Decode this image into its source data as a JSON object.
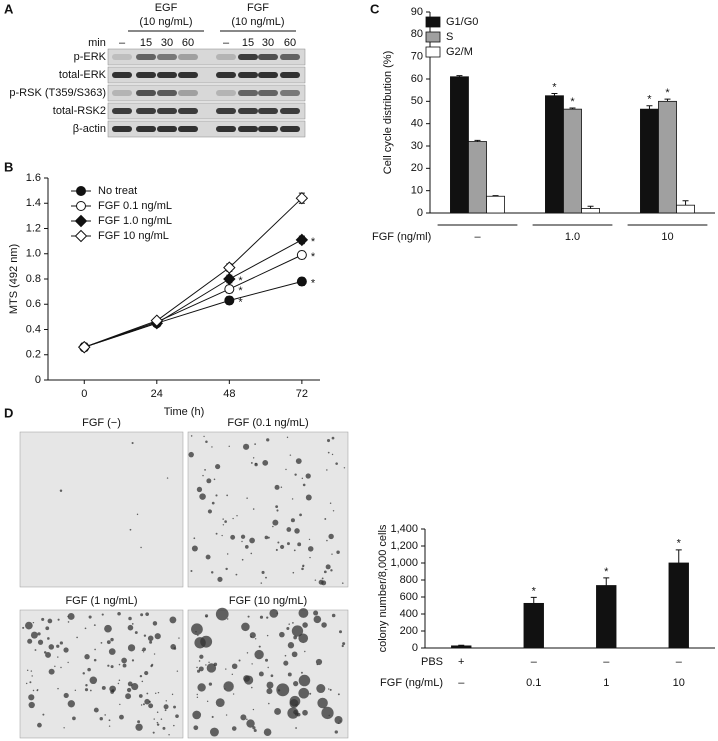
{
  "panel_labels": [
    "A",
    "B",
    "C",
    "D"
  ],
  "blot": {
    "groups": [
      {
        "name": "EGF",
        "dose": "(10 ng/mL)"
      },
      {
        "name": "FGF",
        "dose": "(10 ng/mL)"
      }
    ],
    "lane_title": "min",
    "lanes": [
      "–",
      "15",
      "30",
      "60",
      "–",
      "15",
      "30",
      "60"
    ],
    "rows": [
      "p-ERK",
      "total-ERK",
      "p-RSK (T359/S363)",
      "total-RSK2",
      "β-actin"
    ]
  },
  "colony_images": [
    "FGF (−)",
    "FGF (0.1 ng/mL)",
    "FGF (1 ng/mL)",
    "FGF (10 ng/mL)"
  ],
  "chart_data": [
    {
      "type": "line",
      "x_label": "Time (h)",
      "y_label": "MTS (492 nm)",
      "x": [
        0,
        24,
        48,
        72
      ],
      "xlim": [
        -12,
        78
      ],
      "xticks": [
        0,
        24,
        48,
        72
      ],
      "ylim": [
        0,
        1.6
      ],
      "yticks": [
        0,
        0.2,
        0.4,
        0.6,
        0.8,
        {
          "value": 1,
          "label": "1.0"
        },
        1.2,
        1.4,
        1.6
      ],
      "legend": "upper-left",
      "significance": "*",
      "series": [
        {
          "name": "No treat",
          "marker": "circle",
          "filled": true,
          "color": "#111111",
          "values": [
            0.26,
            0.45,
            0.63,
            0.78
          ],
          "errors": [
            0.03,
            0.02,
            0.03,
            0.03
          ],
          "significant": [
            false,
            false,
            true,
            true
          ]
        },
        {
          "name": "FGF 0.1 ng/mL",
          "marker": "circle",
          "filled": false,
          "color": "#111111",
          "values": [
            0.26,
            0.46,
            0.72,
            0.99
          ],
          "errors": [
            0.03,
            0.02,
            0.03,
            0.03
          ],
          "significant": [
            false,
            false,
            true,
            true
          ]
        },
        {
          "name": "FGF 1.0 ng/mL",
          "marker": "diamond",
          "filled": true,
          "color": "#111111",
          "values": [
            0.26,
            0.45,
            0.8,
            1.11
          ],
          "errors": [
            0.03,
            0.02,
            0.03,
            0.03
          ],
          "significant": [
            false,
            false,
            true,
            true
          ]
        },
        {
          "name": "FGF 10 ng/mL",
          "marker": "diamond",
          "filled": false,
          "color": "#111111",
          "values": [
            0.26,
            0.47,
            0.89,
            1.44
          ],
          "errors": [
            0.03,
            0.02,
            0.03,
            0.04
          ],
          "significant": [
            false,
            false,
            false,
            false
          ]
        }
      ]
    },
    {
      "type": "bar",
      "y_label": "Cell cycle distribution (%)",
      "x_label": "FGF (ng/ml)",
      "categories": [
        "–",
        "1.0",
        "10"
      ],
      "ylim": [
        0,
        90
      ],
      "yticks": [
        0,
        10,
        20,
        30,
        40,
        50,
        60,
        70,
        80,
        90
      ],
      "legend": "upper-left",
      "significance": "*",
      "series": [
        {
          "name": "G1/G0",
          "color": "#111111",
          "values": [
            61,
            52.5,
            46.5
          ],
          "errors": [
            0.5,
            1,
            1.5
          ],
          "significant": [
            false,
            true,
            true
          ]
        },
        {
          "name": "S",
          "color": "#a0a0a0",
          "values": [
            32,
            46.5,
            50
          ],
          "errors": [
            0.5,
            0.5,
            1
          ],
          "significant": [
            false,
            true,
            true
          ]
        },
        {
          "name": "G2/M",
          "color": "#ffffff",
          "values": [
            7.5,
            2,
            3.5
          ],
          "errors": [
            0.3,
            1,
            2
          ],
          "significant": [
            false,
            false,
            false
          ]
        }
      ]
    },
    {
      "type": "bar",
      "y_label": "colony number/8,000 cells",
      "category_rows": [
        {
          "name": "PBS",
          "labels": [
            "+",
            "–",
            "–",
            "–"
          ]
        },
        {
          "name": "FGF (ng/mL)",
          "labels": [
            "–",
            "0.1",
            "1",
            "10"
          ]
        }
      ],
      "ylim": [
        0,
        1400
      ],
      "yticks": [
        0,
        200,
        400,
        600,
        800,
        {
          "value": 1000,
          "label": "1,000"
        },
        {
          "value": 1200,
          "label": "1,200"
        },
        {
          "value": 1400,
          "label": "1,400"
        }
      ],
      "color": "#111111",
      "significance": "*",
      "values": [
        25,
        525,
        735,
        1000
      ],
      "errors": [
        8,
        70,
        90,
        155
      ],
      "significant": [
        false,
        true,
        true,
        true
      ]
    }
  ]
}
